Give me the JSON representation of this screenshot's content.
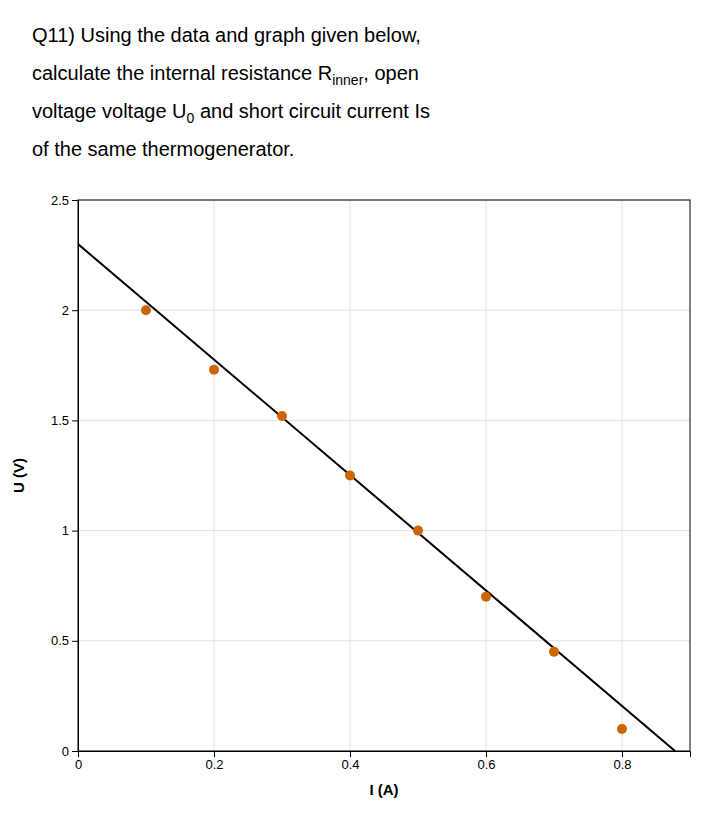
{
  "chart_data": {
    "type": "scatter",
    "title": [
      [
        "Q11) Using the data and graph given below,"
      ],
      [
        "calculate the internal resistance R",
        "inner",
        ", open"
      ],
      [
        "voltage voltage U",
        "0",
        " and short circuit current Is"
      ],
      [
        "of the same thermogenerator."
      ]
    ],
    "x_label": "I (A)",
    "y_label": "U (V)",
    "xlim": [
      0,
      0.9
    ],
    "ylim": [
      0,
      2.5
    ],
    "xticks": [
      0,
      0.2,
      0.4,
      0.6,
      0.8
    ],
    "yticks": [
      0,
      0.5,
      1,
      1.5,
      2,
      2.5
    ],
    "grid": true,
    "series": [
      {
        "type": "line",
        "color": "#000000",
        "x": [
          0.0,
          0.878
        ],
        "values": [
          2.3,
          0.0
        ]
      },
      {
        "type": "scatter",
        "color": "#CC6600",
        "x": [
          0.1,
          0.2,
          0.3,
          0.4,
          0.5,
          0.6,
          0.7,
          0.8
        ],
        "values": [
          2.0,
          1.73,
          1.52,
          1.25,
          1.0,
          0.7,
          0.45,
          0.1
        ]
      }
    ]
  }
}
